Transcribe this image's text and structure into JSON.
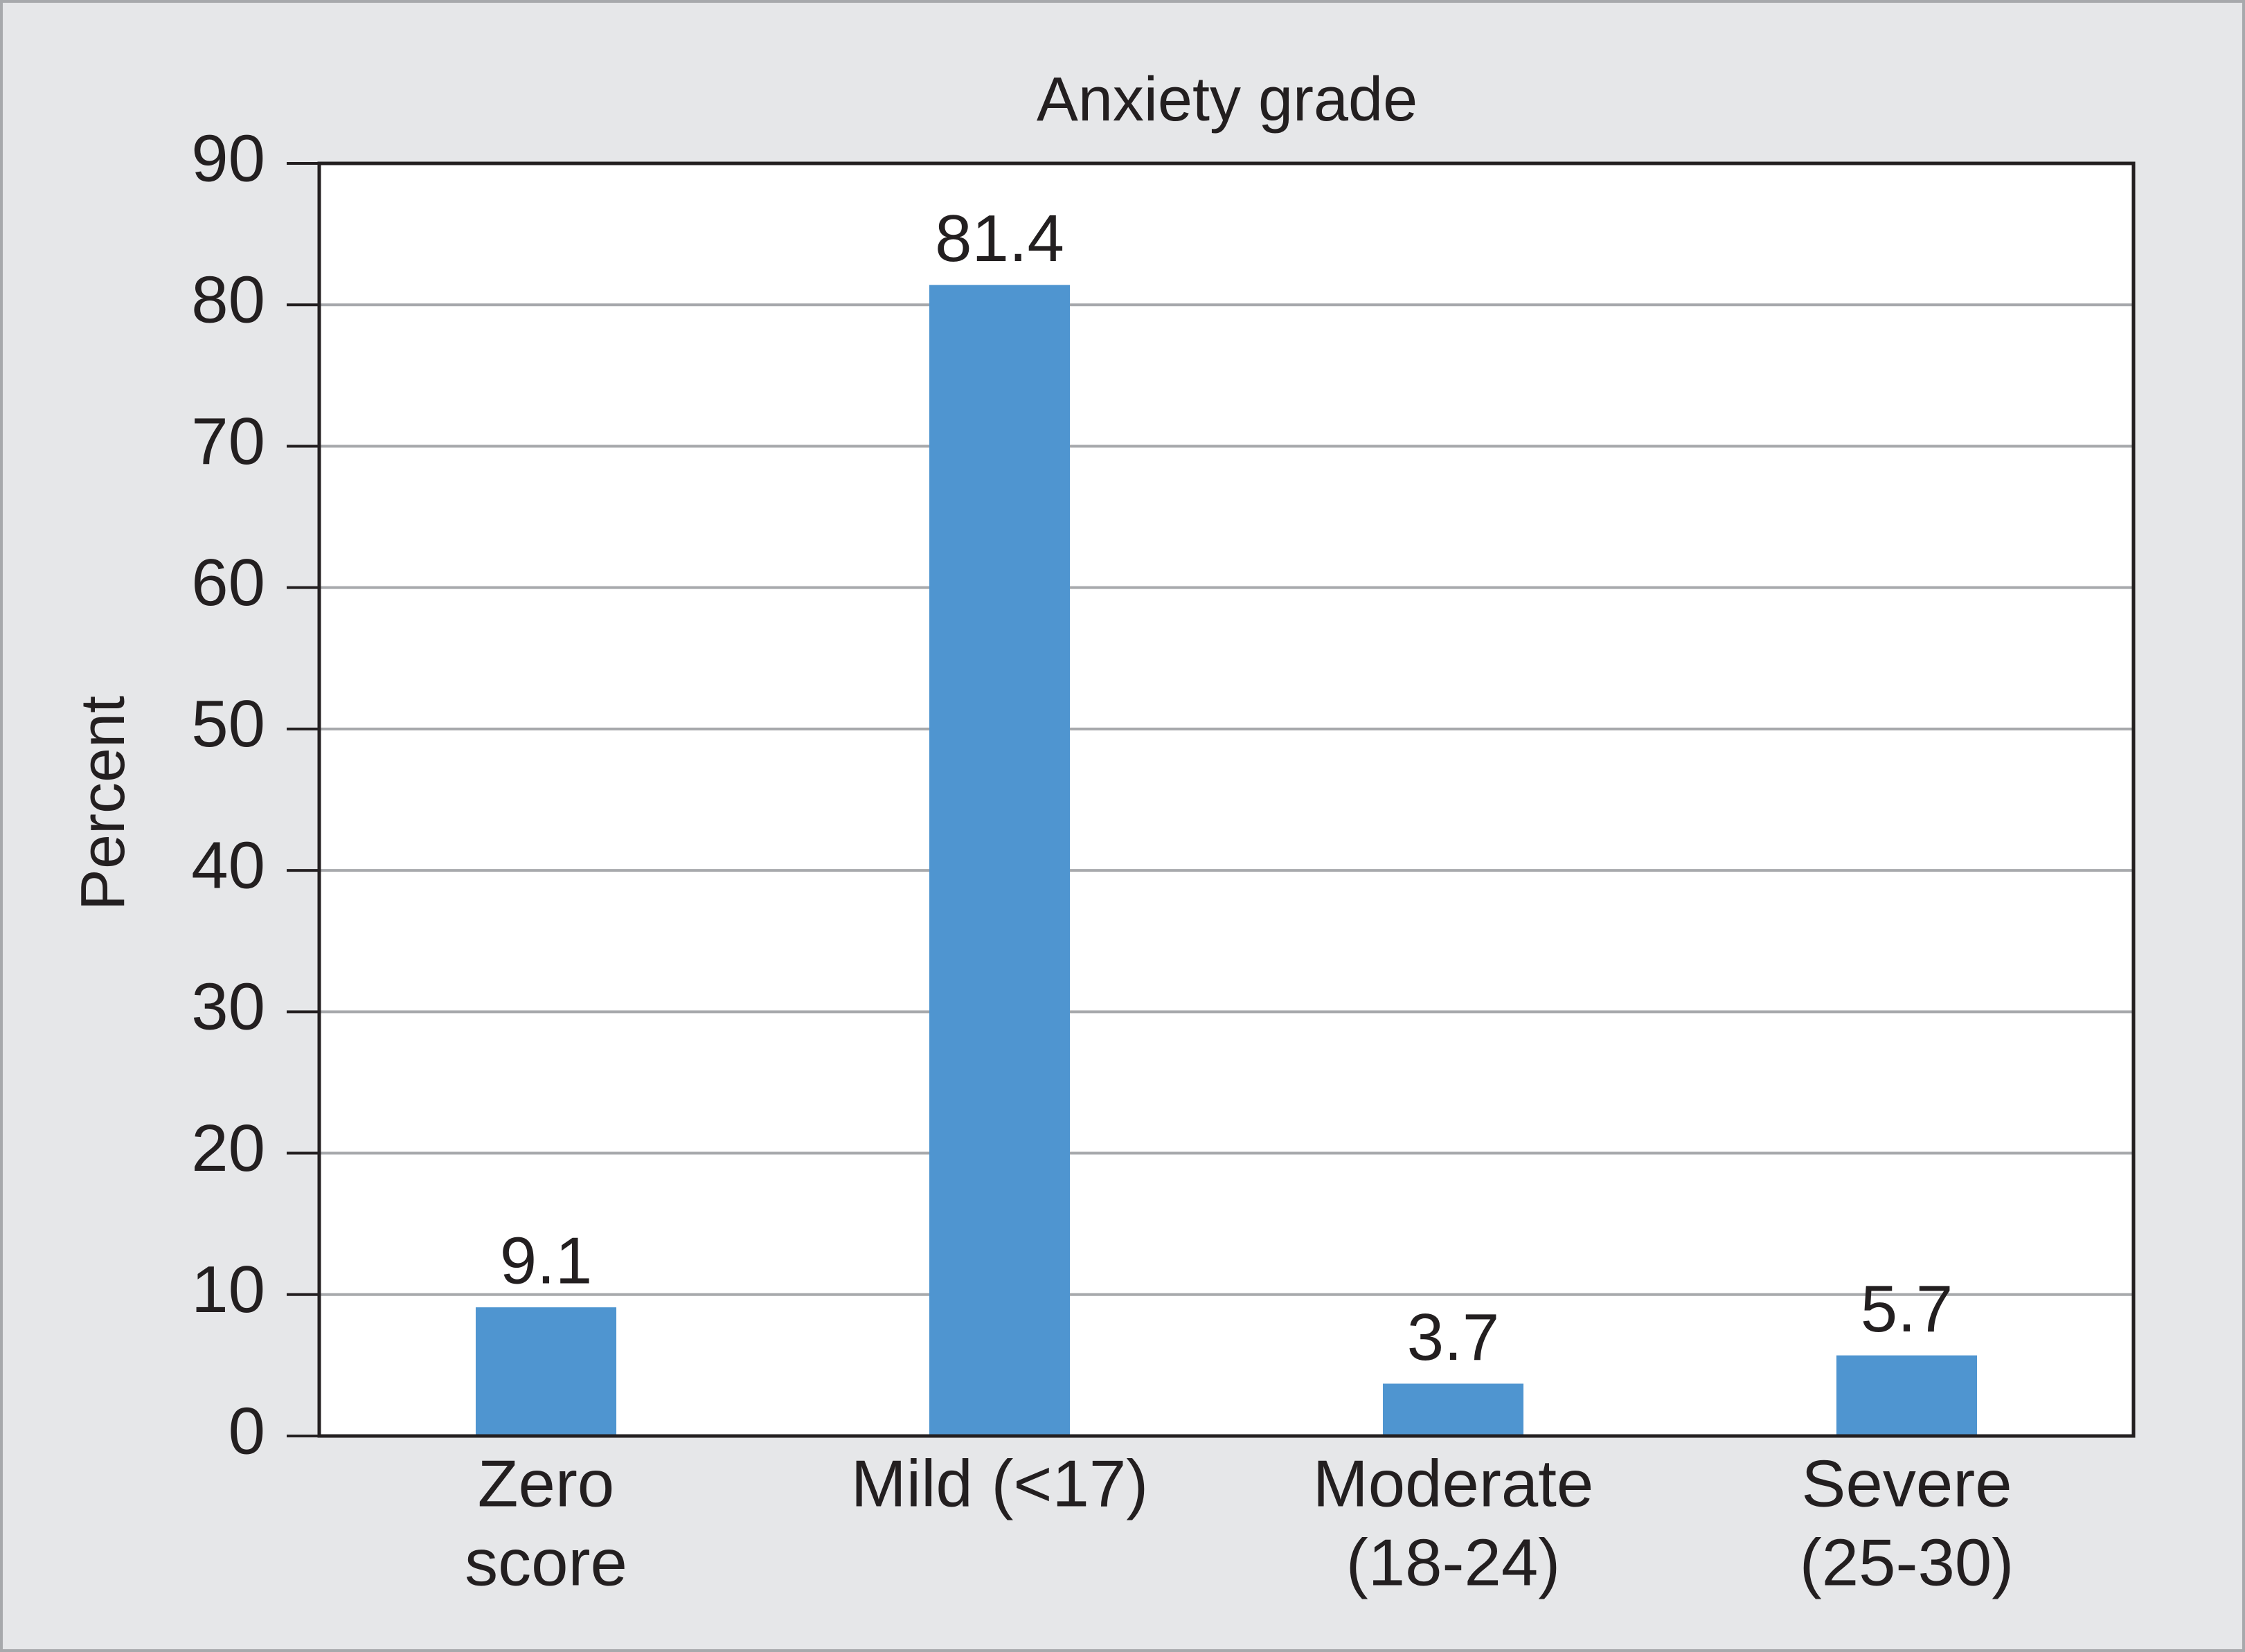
{
  "chart_data": {
    "type": "bar",
    "title": "Anxiety grade",
    "y_label": "Percent",
    "categories": [
      [
        "Zero",
        "score"
      ],
      [
        "Mild (<17)"
      ],
      [
        "Moderate",
        "(18-24)"
      ],
      [
        "Severe",
        "(25-30)"
      ]
    ],
    "values": [
      9.1,
      81.4,
      3.7,
      5.7
    ],
    "color": "#4f95d0",
    "ylim": [
      0,
      90
    ],
    "yticks": [
      0,
      10,
      20,
      30,
      40,
      50,
      60,
      70,
      80,
      90
    ],
    "grid": true
  }
}
